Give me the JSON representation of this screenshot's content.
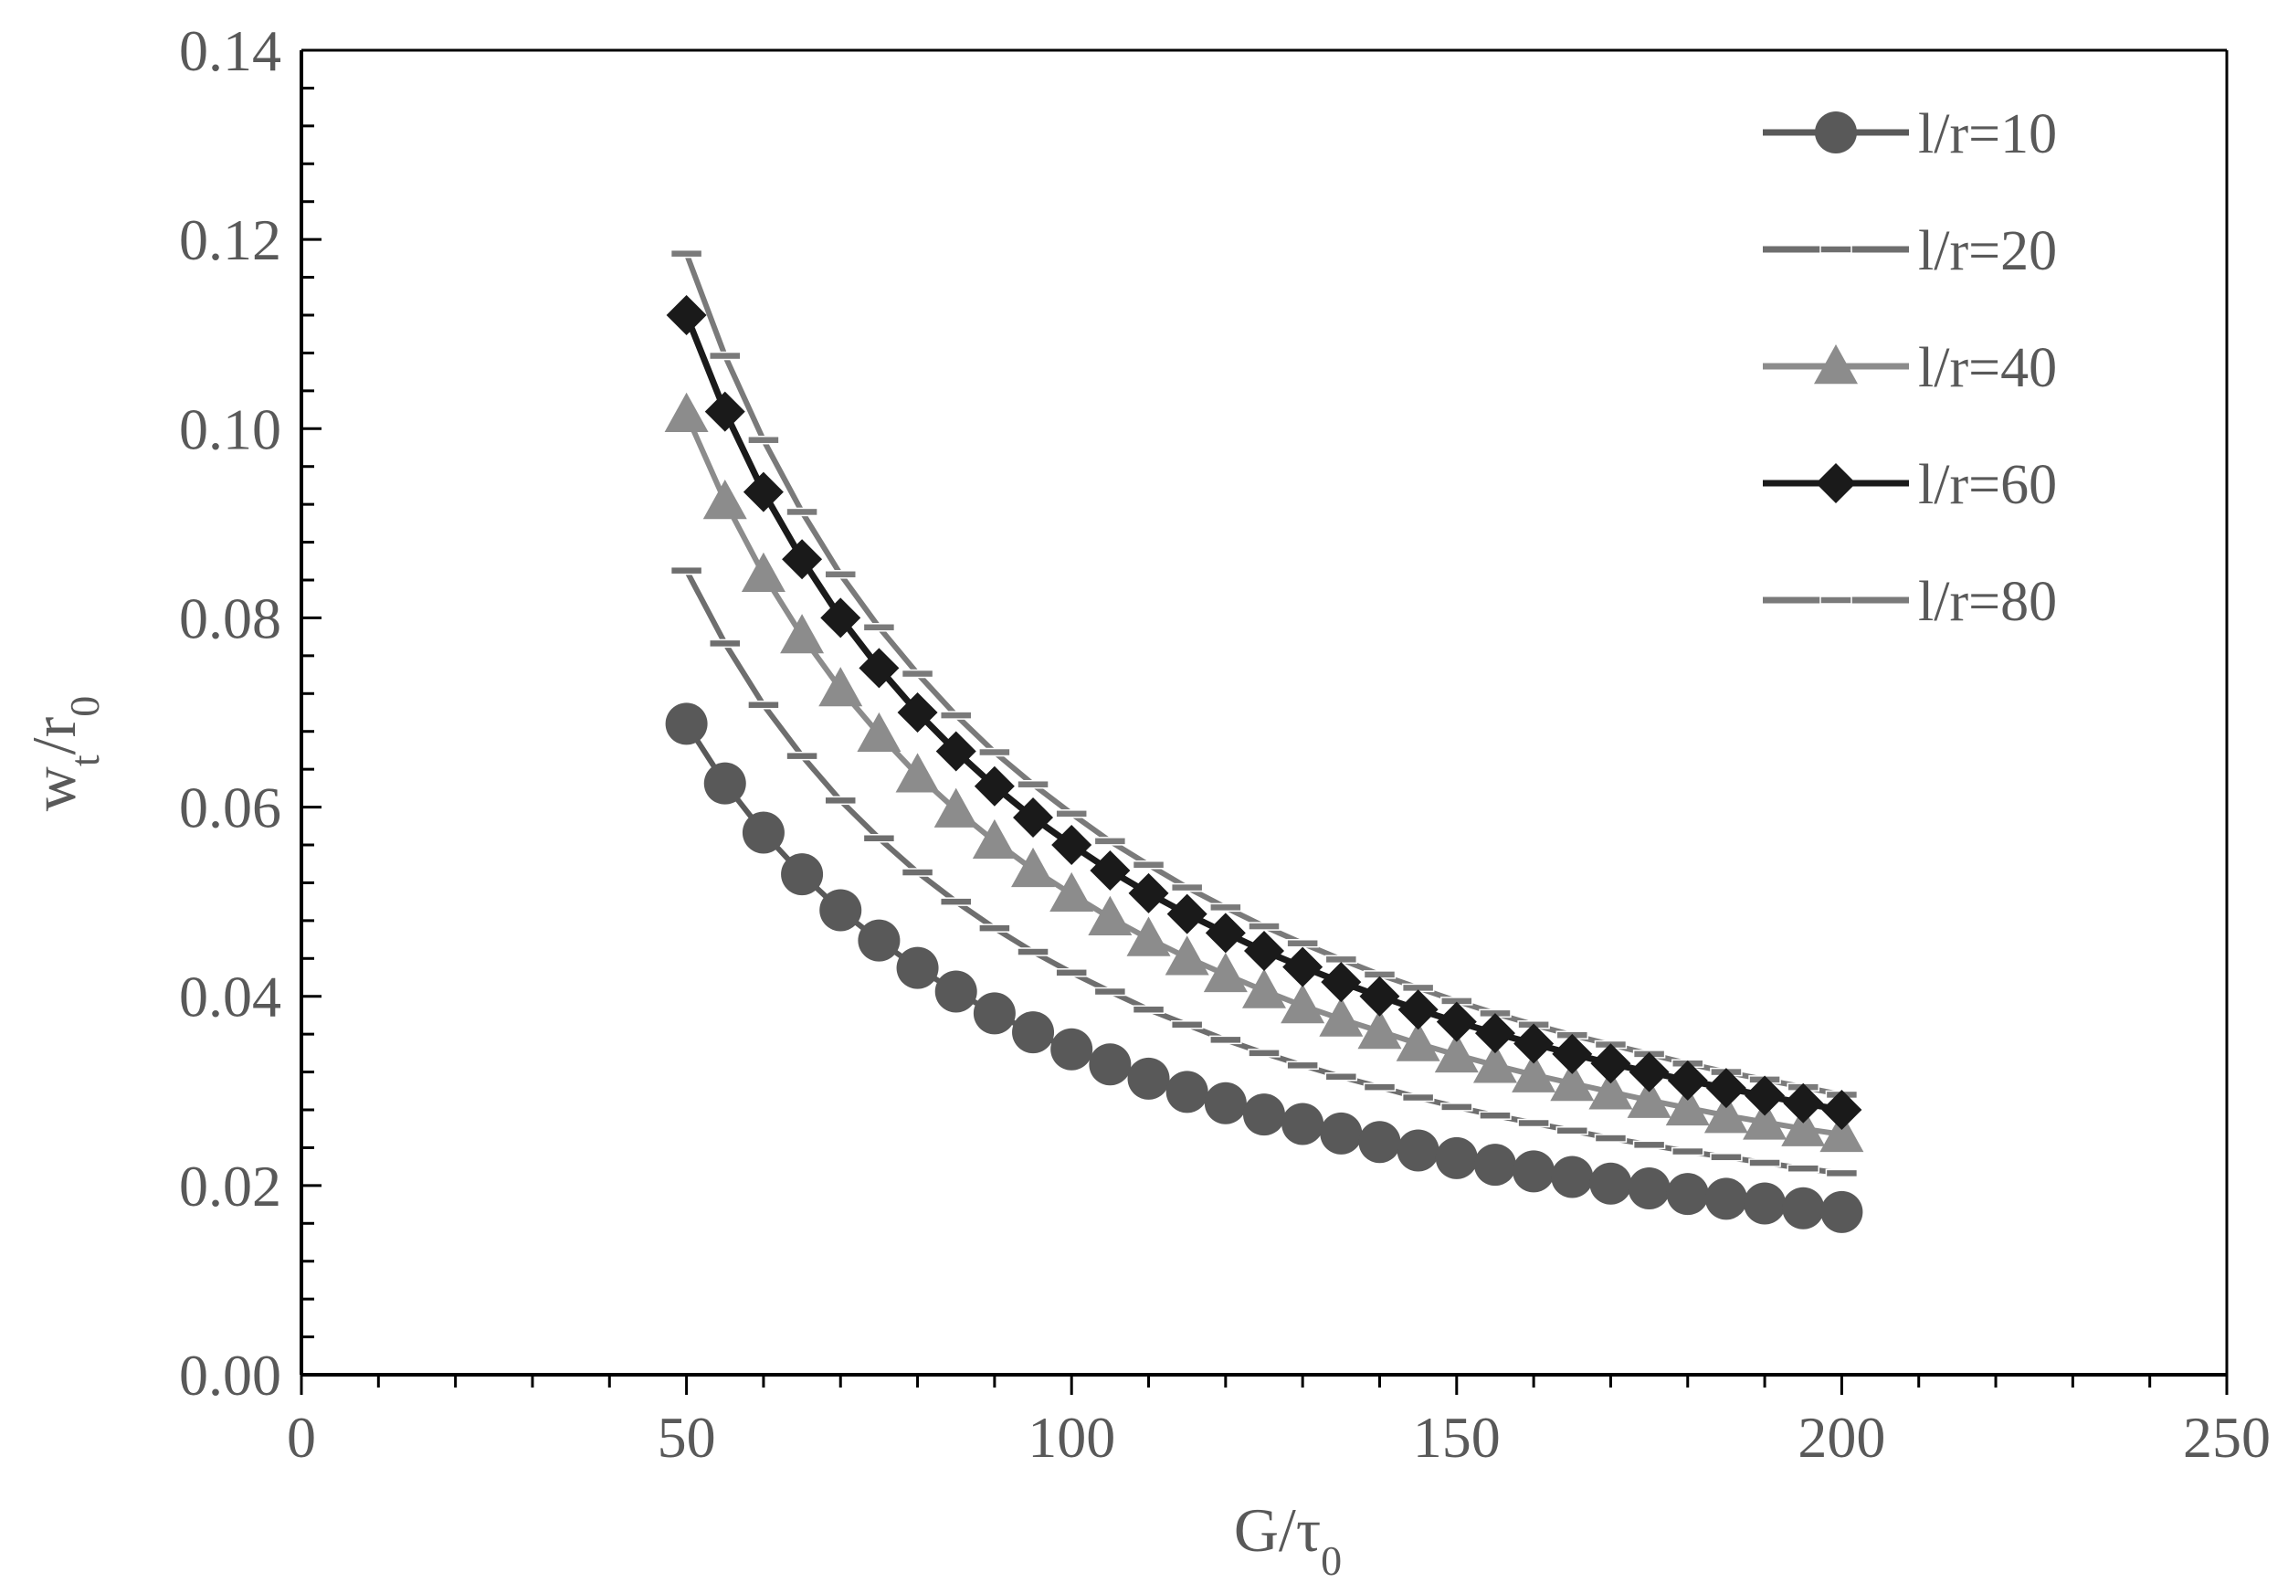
{
  "chart_data": {
    "type": "line",
    "x_axis": {
      "label_main": "G/τ",
      "label_sub": "0",
      "min": 0,
      "max": 250,
      "major_step": 50,
      "minor_step": 10,
      "tick_labels": [
        "0",
        "50",
        "100",
        "150",
        "200",
        "250"
      ]
    },
    "y_axis": {
      "label_w": "w",
      "label_w_sub": "t",
      "label_r": "/r",
      "label_r_sub": "0",
      "min": 0,
      "max": 0.14,
      "major_step": 0.02,
      "minor_step": 0.004,
      "tick_labels": [
        "0.00",
        "0.02",
        "0.04",
        "0.06",
        "0.08",
        "0.10",
        "0.12",
        "0.14"
      ]
    },
    "grid": false,
    "legend_position": "top-right",
    "series": [
      {
        "name": "l/r=10",
        "marker": "circle",
        "color": "#595959",
        "x": [
          50,
          55,
          60,
          65,
          70,
          75,
          80,
          85,
          90,
          95,
          100,
          105,
          110,
          115,
          120,
          125,
          130,
          135,
          140,
          145,
          150,
          155,
          160,
          165,
          170,
          175,
          180,
          185,
          190,
          195,
          200
        ],
        "y": [
          0.0688,
          0.0625,
          0.0573,
          0.0529,
          0.0491,
          0.0459,
          0.043,
          0.0405,
          0.0382,
          0.0362,
          0.0344,
          0.0328,
          0.0313,
          0.0299,
          0.0287,
          0.0275,
          0.0265,
          0.0255,
          0.0246,
          0.0237,
          0.0229,
          0.0222,
          0.0215,
          0.0209,
          0.0202,
          0.0197,
          0.0191,
          0.0186,
          0.0181,
          0.0176,
          0.0172
        ]
      },
      {
        "name": "l/r=20",
        "marker": "dash",
        "color": "#6e6e6e",
        "x": [
          50,
          55,
          60,
          65,
          70,
          75,
          80,
          85,
          90,
          95,
          100,
          105,
          110,
          115,
          120,
          125,
          130,
          135,
          140,
          145,
          150,
          155,
          160,
          165,
          170,
          175,
          180,
          185,
          190,
          195,
          200
        ],
        "y": [
          0.085,
          0.0773,
          0.0708,
          0.0654,
          0.0607,
          0.0567,
          0.0531,
          0.05,
          0.0472,
          0.0447,
          0.0425,
          0.0405,
          0.0386,
          0.037,
          0.0354,
          0.034,
          0.0327,
          0.0315,
          0.0304,
          0.0293,
          0.0283,
          0.0274,
          0.0266,
          0.0258,
          0.025,
          0.0243,
          0.0236,
          0.023,
          0.0224,
          0.0218,
          0.0213
        ]
      },
      {
        "name": "l/r=40",
        "marker": "triangle",
        "color": "#8c8c8c",
        "x": [
          50,
          55,
          60,
          65,
          70,
          75,
          80,
          85,
          90,
          95,
          100,
          105,
          110,
          115,
          120,
          125,
          130,
          135,
          140,
          145,
          150,
          155,
          160,
          165,
          170,
          175,
          180,
          185,
          190,
          195,
          200
        ],
        "y": [
          0.1015,
          0.0923,
          0.0846,
          0.0781,
          0.0725,
          0.0677,
          0.0634,
          0.0597,
          0.0564,
          0.0534,
          0.0508,
          0.0483,
          0.0461,
          0.0441,
          0.0423,
          0.0406,
          0.039,
          0.0376,
          0.0363,
          0.035,
          0.0338,
          0.0327,
          0.0317,
          0.0308,
          0.0299,
          0.029,
          0.0282,
          0.0274,
          0.0267,
          0.026,
          0.0254
        ]
      },
      {
        "name": "l/r=60",
        "marker": "diamond",
        "color": "#1a1a1a",
        "x": [
          50,
          55,
          60,
          65,
          70,
          75,
          80,
          85,
          90,
          95,
          100,
          105,
          110,
          115,
          120,
          125,
          130,
          135,
          140,
          145,
          150,
          155,
          160,
          165,
          170,
          175,
          180,
          185,
          190,
          195,
          200
        ],
        "y": [
          0.112,
          0.1018,
          0.0933,
          0.0862,
          0.08,
          0.0747,
          0.07,
          0.0659,
          0.0622,
          0.0589,
          0.056,
          0.0533,
          0.0509,
          0.0487,
          0.0467,
          0.0448,
          0.0431,
          0.0415,
          0.04,
          0.0386,
          0.0373,
          0.0361,
          0.035,
          0.0339,
          0.0329,
          0.032,
          0.0311,
          0.0303,
          0.0295,
          0.0287,
          0.028
        ]
      },
      {
        "name": "l/r=80",
        "marker": "dash",
        "color": "#7a7a7a",
        "x": [
          50,
          55,
          60,
          65,
          70,
          75,
          80,
          85,
          90,
          95,
          100,
          105,
          110,
          115,
          120,
          125,
          130,
          135,
          140,
          145,
          150,
          155,
          160,
          165,
          170,
          175,
          180,
          185,
          190,
          195,
          200
        ],
        "y": [
          0.1185,
          0.1077,
          0.0988,
          0.0912,
          0.0846,
          0.079,
          0.0741,
          0.0697,
          0.0658,
          0.0624,
          0.0593,
          0.0564,
          0.0539,
          0.0515,
          0.0494,
          0.0474,
          0.0456,
          0.0439,
          0.0423,
          0.0409,
          0.0395,
          0.0382,
          0.037,
          0.0359,
          0.0349,
          0.0339,
          0.0329,
          0.032,
          0.0312,
          0.0304,
          0.0296
        ]
      }
    ]
  }
}
